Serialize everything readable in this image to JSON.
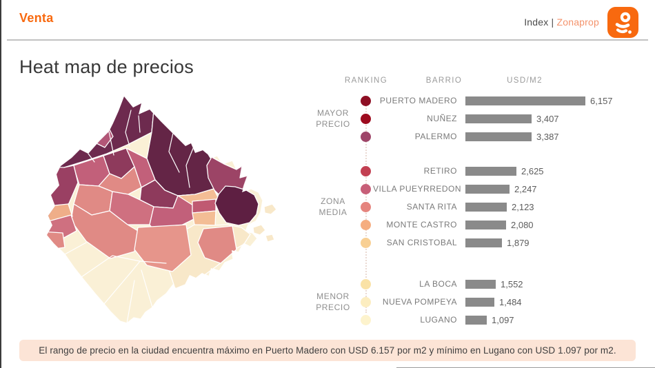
{
  "header": {
    "venta_label": "Venta",
    "index_label": "Index |",
    "zonaprop_label": "Zonaprop"
  },
  "title": "Heat map de precios",
  "footer_note": "El rango de precio en la ciudad encuentra máximo en Puerto Madero con USD 6.157 por m2 y mínimo en Lugano con USD 1.097 por m2.",
  "colors": {
    "accent_orange": "#f8690f",
    "brand_light_orange": "#f4936c",
    "bar_gray": "#8a8a8a",
    "note_background": "#fce4d6"
  },
  "chart_data": {
    "type": "bar",
    "title": "Heat map de precios",
    "columns": [
      "RANKING",
      "BARRIO",
      "USD/M2"
    ],
    "xlim": [
      0,
      6157
    ],
    "max_value": 6157,
    "bar_color": "#8a8a8a",
    "groups": [
      {
        "label": "MAYOR\nPRECIO",
        "rows": [
          {
            "barrio": "PUERTO MADERO",
            "value": 6157,
            "display": "6,157",
            "dot_color": "#8e0f24"
          },
          {
            "barrio": "NUÑEZ",
            "value": 3407,
            "display": "3,407",
            "dot_color": "#9d0b1e"
          },
          {
            "barrio": "PALERMO",
            "value": 3387,
            "display": "3,387",
            "dot_color": "#9e4568"
          }
        ]
      },
      {
        "label": "ZONA\nMEDIA",
        "rows": [
          {
            "barrio": "RETIRO",
            "value": 2625,
            "display": "2,625",
            "dot_color": "#c23f51"
          },
          {
            "barrio": "VILLA PUEYRREDON",
            "value": 2247,
            "display": "2,247",
            "dot_color": "#c75f78"
          },
          {
            "barrio": "SANTA RITA",
            "value": 2123,
            "display": "2,123",
            "dot_color": "#e5847e"
          },
          {
            "barrio": "MONTE CASTRO",
            "value": 2080,
            "display": "2,080",
            "dot_color": "#f5ad80"
          },
          {
            "barrio": "SAN CRISTOBAL",
            "value": 1879,
            "display": "1,879",
            "dot_color": "#f8cf93"
          }
        ]
      },
      {
        "label": "MENOR\nPRECIO",
        "rows": [
          {
            "barrio": "LA BOCA",
            "value": 1552,
            "display": "1,552",
            "dot_color": "#fae2a6"
          },
          {
            "barrio": "NUEVA POMPEYA",
            "value": 1484,
            "display": "1,484",
            "dot_color": "#fcedc0"
          },
          {
            "barrio": "LUGANO",
            "value": 1097,
            "display": "1,097",
            "dot_color": "#fdf3cd"
          }
        ]
      }
    ]
  },
  "map": {
    "description": "Choropleth of Buenos Aires barrios, dark = higher price (north, Puerto Madero), pale = lower price (south)",
    "palette": {
      "dark1": "#6d2a4e",
      "dark2": "#642546",
      "dark3": "#5e1f42",
      "medium1": "#9c4466",
      "medium2": "#8e3a5c",
      "medium3": "#9a4063",
      "pink": "#b25677",
      "rose": "#c2607a",
      "rose2": "#cf7080",
      "red": "#c05a72",
      "salmon": "#e08a85",
      "salmon2": "#e6958b",
      "peach": "#f3bd95",
      "peach2": "#efae89",
      "cream": "#f8e8c9",
      "cream2": "#faf0d6"
    }
  }
}
